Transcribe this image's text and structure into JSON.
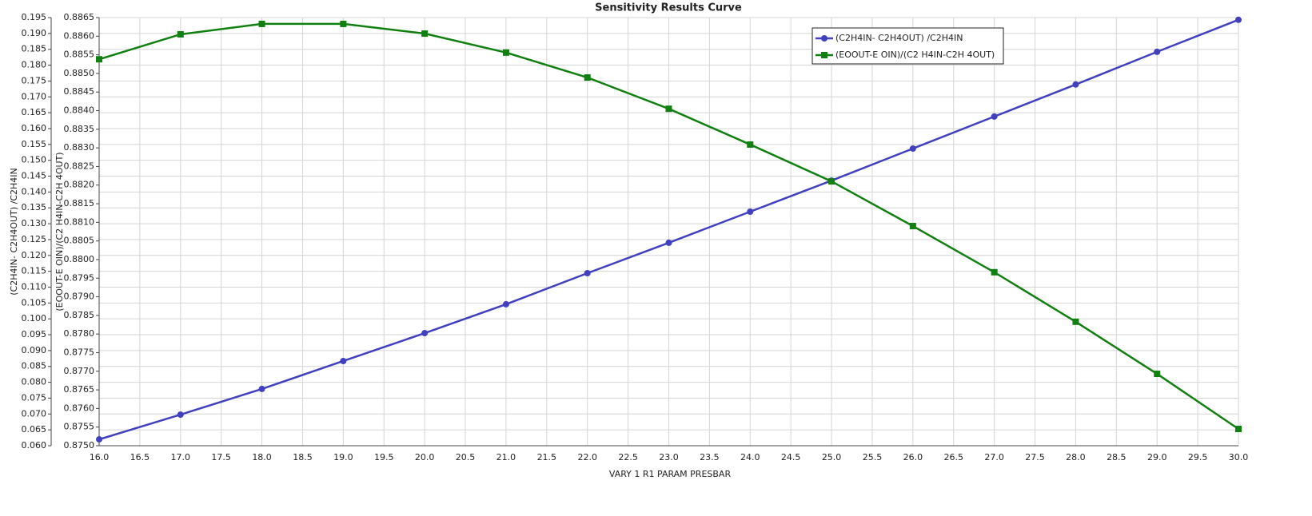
{
  "chart_data": {
    "type": "line",
    "title": "Sensitivity Results Curve",
    "x_label": "VARY    1 R1 PARAM PRESBAR",
    "y_label": "(C2H4IN- C2H4OUT) /C2H4IN",
    "y2_label": "(EOOUT-E OIN)/(C2 H4IN-C2H 4OUT)",
    "x": [
      16,
      17,
      18,
      19,
      20,
      21,
      22,
      23,
      24,
      25,
      26,
      27,
      28,
      29,
      30
    ],
    "series": [
      {
        "name": "(C2H4IN- C2H4OUT) /C2H4IN",
        "color": "#4040c0",
        "marker": "circle",
        "values": [
          0.062,
          0.0698,
          0.0779,
          0.0867,
          0.0955,
          0.1046,
          0.1144,
          0.124,
          0.1338,
          0.1436,
          0.1537,
          0.1638,
          0.1739,
          0.1842,
          0.1943
        ]
      },
      {
        "name": "(EOOUT-E OIN)/(C2 H4IN-C2H 4OUT)",
        "color": "#108010",
        "marker": "square",
        "axis": "y2",
        "values": [
          0.88538,
          0.88605,
          0.88633,
          0.88633,
          0.88607,
          0.88556,
          0.88489,
          0.88405,
          0.88309,
          0.8821,
          0.8809,
          0.87966,
          0.87833,
          0.87693,
          0.87545
        ]
      }
    ],
    "xlim": [
      16,
      30
    ],
    "xticks": [
      {
        "value": 16,
        "label": "16.0"
      },
      {
        "value": 16.5,
        "label": "16.5"
      },
      {
        "value": 17,
        "label": "17.0"
      },
      {
        "value": 17.5,
        "label": "17.5"
      },
      {
        "value": 18,
        "label": "18.0"
      },
      {
        "value": 18.5,
        "label": "18.5"
      },
      {
        "value": 19,
        "label": "19.0"
      },
      {
        "value": 19.5,
        "label": "19.5"
      },
      {
        "value": 20,
        "label": "20.0"
      },
      {
        "value": 20.5,
        "label": "20.5"
      },
      {
        "value": 21,
        "label": "21.0"
      },
      {
        "value": 21.5,
        "label": "21.5"
      },
      {
        "value": 22,
        "label": "22.0"
      },
      {
        "value": 22.5,
        "label": "22.5"
      },
      {
        "value": 23,
        "label": "23.0"
      },
      {
        "value": 23.5,
        "label": "23.5"
      },
      {
        "value": 24,
        "label": "24.0"
      },
      {
        "value": 24.5,
        "label": "24.5"
      },
      {
        "value": 25,
        "label": "25.0"
      },
      {
        "value": 25.5,
        "label": "25.5"
      },
      {
        "value": 26,
        "label": "26.0"
      },
      {
        "value": 26.5,
        "label": "26.5"
      },
      {
        "value": 27,
        "label": "27.0"
      },
      {
        "value": 27.5,
        "label": "27.5"
      },
      {
        "value": 28,
        "label": "28.0"
      },
      {
        "value": 28.5,
        "label": "28.5"
      },
      {
        "value": 29,
        "label": "29.0"
      },
      {
        "value": 29.5,
        "label": "29.5"
      },
      {
        "value": 30,
        "label": "30.0"
      }
    ],
    "ylim": [
      0.06,
      0.195
    ],
    "yticks": [
      {
        "value": 0.06,
        "label": "0.060"
      },
      {
        "value": 0.065,
        "label": "0.065"
      },
      {
        "value": 0.07,
        "label": "0.070"
      },
      {
        "value": 0.075,
        "label": "0.075"
      },
      {
        "value": 0.08,
        "label": "0.080"
      },
      {
        "value": 0.085,
        "label": "0.085"
      },
      {
        "value": 0.09,
        "label": "0.090"
      },
      {
        "value": 0.095,
        "label": "0.095"
      },
      {
        "value": 0.1,
        "label": "0.100"
      },
      {
        "value": 0.105,
        "label": "0.105"
      },
      {
        "value": 0.11,
        "label": "0.110"
      },
      {
        "value": 0.115,
        "label": "0.115"
      },
      {
        "value": 0.12,
        "label": "0.120"
      },
      {
        "value": 0.125,
        "label": "0.125"
      },
      {
        "value": 0.13,
        "label": "0.130"
      },
      {
        "value": 0.135,
        "label": "0.135"
      },
      {
        "value": 0.14,
        "label": "0.140"
      },
      {
        "value": 0.145,
        "label": "0.145"
      },
      {
        "value": 0.15,
        "label": "0.150"
      },
      {
        "value": 0.155,
        "label": "0.155"
      },
      {
        "value": 0.16,
        "label": "0.160"
      },
      {
        "value": 0.165,
        "label": "0.165"
      },
      {
        "value": 0.17,
        "label": "0.170"
      },
      {
        "value": 0.175,
        "label": "0.175"
      },
      {
        "value": 0.18,
        "label": "0.180"
      },
      {
        "value": 0.185,
        "label": "0.185"
      },
      {
        "value": 0.19,
        "label": "0.190"
      },
      {
        "value": 0.195,
        "label": "0.195"
      }
    ],
    "y2lim": [
      0.875,
      0.8865
    ],
    "y2ticks": [
      {
        "value": 0.875,
        "label": "0.8750"
      },
      {
        "value": 0.8755,
        "label": "0.8755"
      },
      {
        "value": 0.876,
        "label": "0.8760"
      },
      {
        "value": 0.8765,
        "label": "0.8765"
      },
      {
        "value": 0.877,
        "label": "0.8770"
      },
      {
        "value": 0.8775,
        "label": "0.8775"
      },
      {
        "value": 0.878,
        "label": "0.8780"
      },
      {
        "value": 0.8785,
        "label": "0.8785"
      },
      {
        "value": 0.879,
        "label": "0.8790"
      },
      {
        "value": 0.8795,
        "label": "0.8795"
      },
      {
        "value": 0.88,
        "label": "0.8800"
      },
      {
        "value": 0.8805,
        "label": "0.8805"
      },
      {
        "value": 0.881,
        "label": "0.8810"
      },
      {
        "value": 0.8815,
        "label": "0.8815"
      },
      {
        "value": 0.882,
        "label": "0.8820"
      },
      {
        "value": 0.8825,
        "label": "0.8825"
      },
      {
        "value": 0.883,
        "label": "0.8830"
      },
      {
        "value": 0.8835,
        "label": "0.8835"
      },
      {
        "value": 0.884,
        "label": "0.8840"
      },
      {
        "value": 0.8845,
        "label": "0.8845"
      },
      {
        "value": 0.885,
        "label": "0.8850"
      },
      {
        "value": 0.8855,
        "label": "0.8855"
      },
      {
        "value": 0.886,
        "label": "0.8860"
      },
      {
        "value": 0.8865,
        "label": "0.8865"
      }
    ],
    "grid": true
  }
}
